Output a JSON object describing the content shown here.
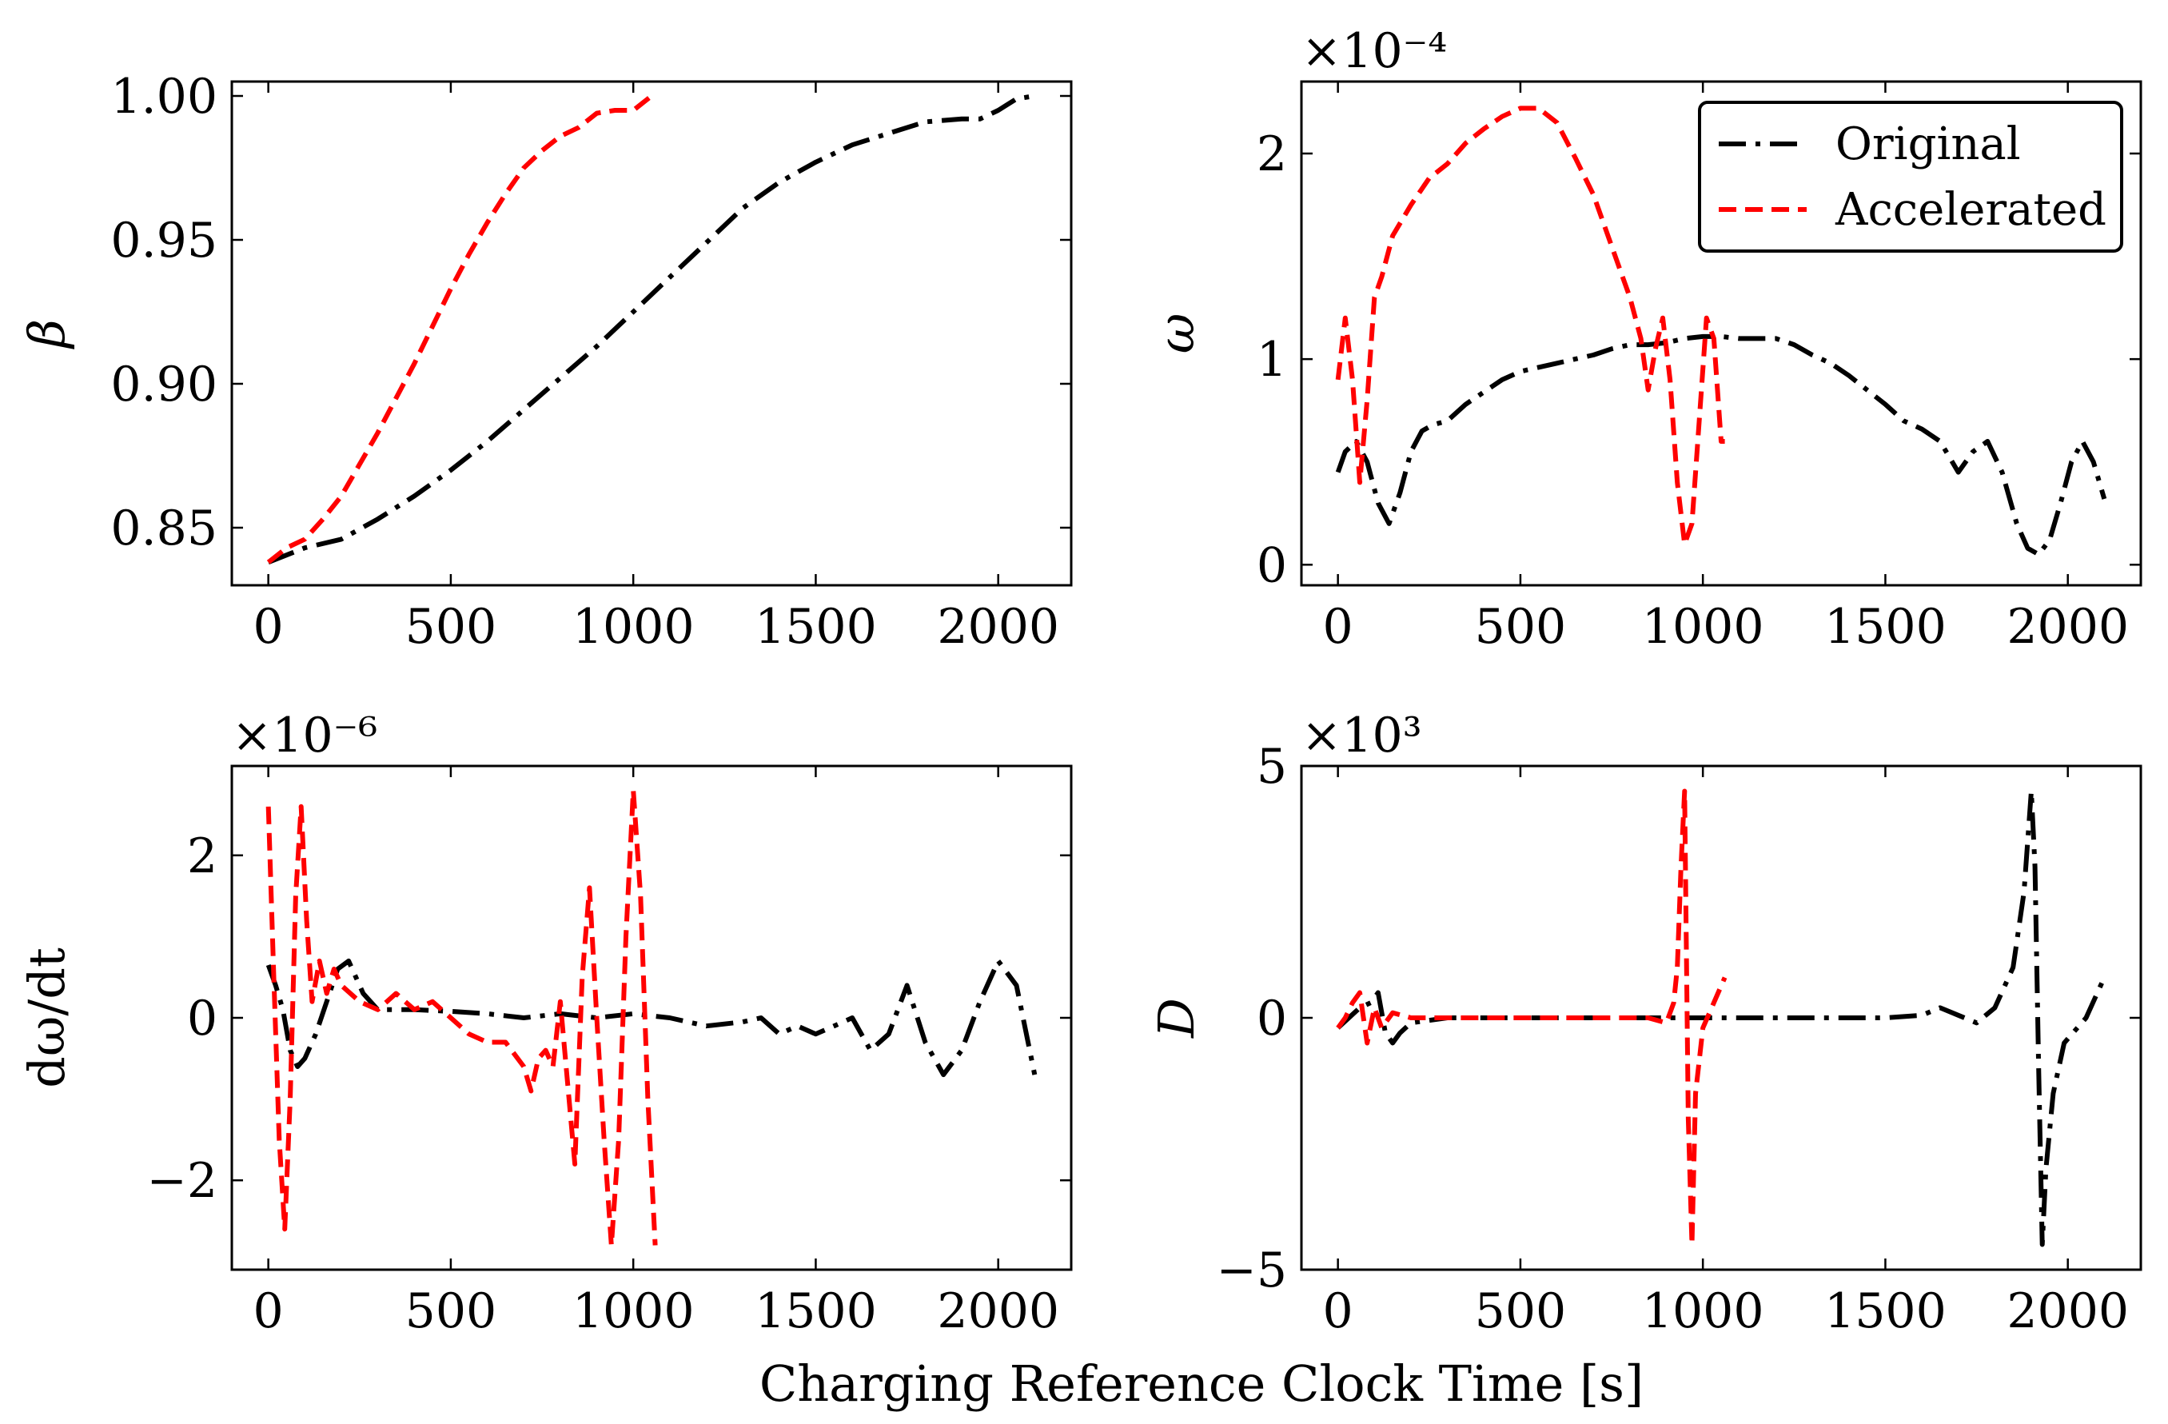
{
  "figure": {
    "xlabel": "Charging Reference Clock Time [s]",
    "legend": {
      "placement": "top-right",
      "entries": [
        "Original",
        "Accelerated"
      ]
    },
    "colors": {
      "original": "#000000",
      "accelerated": "#ff0000"
    }
  },
  "chart_data": [
    {
      "type": "line",
      "panel": "top-left",
      "ylabel": "β",
      "multiplier": "",
      "xlim": [
        -100,
        2200
      ],
      "ylim": [
        0.83,
        1.005
      ],
      "xticks": [
        0,
        500,
        1000,
        1500,
        2000
      ],
      "xtick_labels": [
        "0",
        "500",
        "1000",
        "1500",
        "2000"
      ],
      "yticks": [
        0.85,
        0.9,
        0.95,
        1.0
      ],
      "ytick_labels": [
        "0.85",
        "0.90",
        "0.95",
        "1.00"
      ],
      "series": [
        {
          "name": "Original",
          "style": "dashdot",
          "color": "#000000",
          "x": [
            0,
            100,
            200,
            300,
            400,
            500,
            600,
            700,
            800,
            900,
            1000,
            1100,
            1200,
            1300,
            1400,
            1500,
            1600,
            1650,
            1700,
            1800,
            1900,
            1950,
            2000,
            2050,
            2100
          ],
          "y": [
            0.838,
            0.843,
            0.846,
            0.853,
            0.861,
            0.87,
            0.88,
            0.891,
            0.902,
            0.913,
            0.925,
            0.937,
            0.949,
            0.961,
            0.97,
            0.977,
            0.983,
            0.985,
            0.987,
            0.991,
            0.992,
            0.992,
            0.995,
            0.999,
            1.0
          ]
        },
        {
          "name": "Accelerated",
          "style": "dashed",
          "color": "#ff0000",
          "x": [
            0,
            50,
            100,
            150,
            200,
            250,
            300,
            350,
            400,
            450,
            500,
            550,
            600,
            650,
            700,
            750,
            800,
            850,
            900,
            950,
            1000,
            1050
          ],
          "y": [
            0.838,
            0.843,
            0.846,
            0.853,
            0.861,
            0.872,
            0.883,
            0.895,
            0.907,
            0.92,
            0.933,
            0.945,
            0.956,
            0.966,
            0.975,
            0.981,
            0.986,
            0.989,
            0.994,
            0.995,
            0.995,
            1.0
          ]
        }
      ]
    },
    {
      "type": "line",
      "panel": "top-right",
      "ylabel": "ω",
      "multiplier": "×10⁻⁴",
      "xlim": [
        -100,
        2200
      ],
      "ylim": [
        -0.1,
        2.35
      ],
      "xticks": [
        0,
        500,
        1000,
        1500,
        2000
      ],
      "xtick_labels": [
        "0",
        "500",
        "1000",
        "1500",
        "2000"
      ],
      "yticks": [
        0,
        1,
        2
      ],
      "ytick_labels": [
        "0",
        "1",
        "2"
      ],
      "series": [
        {
          "name": "Original",
          "style": "dashdot",
          "color": "#000000",
          "x": [
            0,
            20,
            50,
            80,
            110,
            140,
            170,
            200,
            230,
            260,
            300,
            350,
            400,
            450,
            500,
            550,
            600,
            650,
            700,
            750,
            800,
            850,
            900,
            950,
            1000,
            1050,
            1100,
            1150,
            1200,
            1250,
            1300,
            1350,
            1400,
            1450,
            1500,
            1550,
            1600,
            1650,
            1700,
            1740,
            1780,
            1820,
            1860,
            1890,
            1920,
            1950,
            1980,
            2010,
            2040,
            2070,
            2100
          ],
          "y": [
            0.45,
            0.55,
            0.6,
            0.5,
            0.3,
            0.2,
            0.35,
            0.55,
            0.65,
            0.68,
            0.7,
            0.78,
            0.84,
            0.9,
            0.94,
            0.96,
            0.98,
            1.0,
            1.02,
            1.05,
            1.07,
            1.07,
            1.08,
            1.1,
            1.11,
            1.11,
            1.1,
            1.1,
            1.1,
            1.07,
            1.02,
            0.98,
            0.92,
            0.85,
            0.78,
            0.7,
            0.66,
            0.6,
            0.45,
            0.55,
            0.6,
            0.45,
            0.2,
            0.08,
            0.05,
            0.12,
            0.3,
            0.5,
            0.6,
            0.5,
            0.32
          ]
        },
        {
          "name": "Accelerated",
          "style": "dashed",
          "color": "#ff0000",
          "x": [
            0,
            20,
            40,
            60,
            80,
            100,
            120,
            150,
            200,
            250,
            300,
            350,
            400,
            450,
            500,
            550,
            600,
            650,
            700,
            750,
            800,
            830,
            850,
            870,
            890,
            910,
            930,
            950,
            970,
            990,
            1010,
            1030,
            1050,
            1060
          ],
          "y": [
            0.9,
            1.2,
            0.9,
            0.4,
            0.8,
            1.3,
            1.4,
            1.6,
            1.75,
            1.88,
            1.95,
            2.05,
            2.12,
            2.18,
            2.22,
            2.22,
            2.15,
            1.98,
            1.8,
            1.55,
            1.3,
            1.1,
            0.85,
            1.05,
            1.2,
            0.9,
            0.4,
            0.1,
            0.2,
            0.7,
            1.2,
            1.1,
            0.6,
            0.6
          ]
        }
      ]
    },
    {
      "type": "line",
      "panel": "bottom-left",
      "ylabel": "dω/dt",
      "multiplier": "×10⁻⁶",
      "xlim": [
        -100,
        2200
      ],
      "ylim": [
        -3.1,
        3.1
      ],
      "xticks": [
        0,
        500,
        1000,
        1500,
        2000
      ],
      "xtick_labels": [
        "0",
        "500",
        "1000",
        "1500",
        "2000"
      ],
      "yticks": [
        -2,
        0,
        2
      ],
      "ytick_labels": [
        "−2",
        "0",
        "2"
      ],
      "series": [
        {
          "name": "Original",
          "style": "dashdot",
          "color": "#000000",
          "x": [
            0,
            20,
            40,
            60,
            80,
            100,
            130,
            160,
            190,
            220,
            260,
            300,
            400,
            500,
            600,
            700,
            800,
            900,
            1000,
            1100,
            1200,
            1300,
            1350,
            1400,
            1450,
            1500,
            1550,
            1600,
            1650,
            1700,
            1750,
            1800,
            1850,
            1900,
            1950,
            2000,
            2050,
            2100
          ],
          "y": [
            0.65,
            0.4,
            0.1,
            -0.4,
            -0.6,
            -0.5,
            -0.2,
            0.2,
            0.6,
            0.7,
            0.3,
            0.1,
            0.1,
            0.08,
            0.05,
            0.0,
            0.05,
            0.0,
            0.05,
            0.0,
            -0.1,
            -0.05,
            0.0,
            -0.2,
            -0.1,
            -0.2,
            -0.1,
            0.0,
            -0.4,
            -0.2,
            0.4,
            -0.3,
            -0.7,
            -0.4,
            0.2,
            0.7,
            0.4,
            -0.7
          ]
        },
        {
          "name": "Accelerated",
          "style": "dashed",
          "color": "#ff0000",
          "x": [
            0,
            15,
            30,
            45,
            60,
            75,
            90,
            105,
            120,
            140,
            160,
            180,
            200,
            250,
            300,
            350,
            400,
            450,
            500,
            550,
            600,
            650,
            700,
            720,
            740,
            760,
            780,
            800,
            820,
            840,
            860,
            880,
            900,
            920,
            940,
            960,
            980,
            1000,
            1020,
            1040,
            1060
          ],
          "y": [
            2.6,
            0.5,
            -1.5,
            -2.6,
            -1.0,
            1.5,
            2.6,
            1.2,
            0.2,
            0.7,
            0.3,
            0.6,
            0.4,
            0.2,
            0.1,
            0.3,
            0.1,
            0.2,
            0.0,
            -0.2,
            -0.3,
            -0.3,
            -0.6,
            -0.9,
            -0.5,
            -0.4,
            -0.6,
            0.2,
            -0.8,
            -1.8,
            0.5,
            1.6,
            0.0,
            -1.5,
            -2.8,
            -1.5,
            1.0,
            2.8,
            1.5,
            -1.0,
            -2.8
          ]
        }
      ]
    },
    {
      "type": "line",
      "panel": "bottom-right",
      "ylabel": "D",
      "multiplier": "×10³",
      "xlim": [
        -100,
        2200
      ],
      "ylim": [
        -5.0,
        5.0
      ],
      "xticks": [
        0,
        500,
        1000,
        1500,
        2000
      ],
      "xtick_labels": [
        "0",
        "500",
        "1000",
        "1500",
        "2000"
      ],
      "yticks": [
        -5,
        0,
        5
      ],
      "ytick_labels": [
        "−5",
        "0",
        "5"
      ],
      "series": [
        {
          "name": "Original",
          "style": "dashdot",
          "color": "#000000",
          "x": [
            0,
            30,
            60,
            90,
            110,
            130,
            150,
            170,
            200,
            300,
            500,
            700,
            900,
            1100,
            1300,
            1500,
            1600,
            1650,
            1700,
            1750,
            1800,
            1850,
            1880,
            1900,
            1910,
            1920,
            1930,
            1940,
            1960,
            1990,
            2050,
            2100
          ],
          "y": [
            -0.2,
            0.0,
            0.2,
            0.3,
            0.5,
            -0.3,
            -0.5,
            -0.3,
            -0.1,
            0.0,
            0.0,
            0.0,
            0.0,
            0.0,
            0.0,
            0.0,
            0.05,
            0.2,
            0.05,
            -0.1,
            0.2,
            1.0,
            2.5,
            4.5,
            3.0,
            -1.0,
            -4.5,
            -3.0,
            -1.5,
            -0.5,
            0.0,
            0.8
          ]
        },
        {
          "name": "Accelerated",
          "style": "dashed",
          "color": "#ff0000",
          "x": [
            0,
            20,
            40,
            60,
            80,
            100,
            120,
            150,
            200,
            300,
            500,
            700,
            850,
            900,
            920,
            930,
            940,
            950,
            960,
            970,
            980,
            1000,
            1030,
            1060
          ],
          "y": [
            -0.2,
            0.0,
            0.3,
            0.5,
            -0.5,
            0.2,
            -0.2,
            0.1,
            0.0,
            0.0,
            0.0,
            0.0,
            0.0,
            -0.1,
            0.3,
            1.0,
            3.0,
            4.5,
            -2.0,
            -4.5,
            -1.5,
            -0.2,
            0.3,
            0.8
          ]
        }
      ]
    }
  ]
}
